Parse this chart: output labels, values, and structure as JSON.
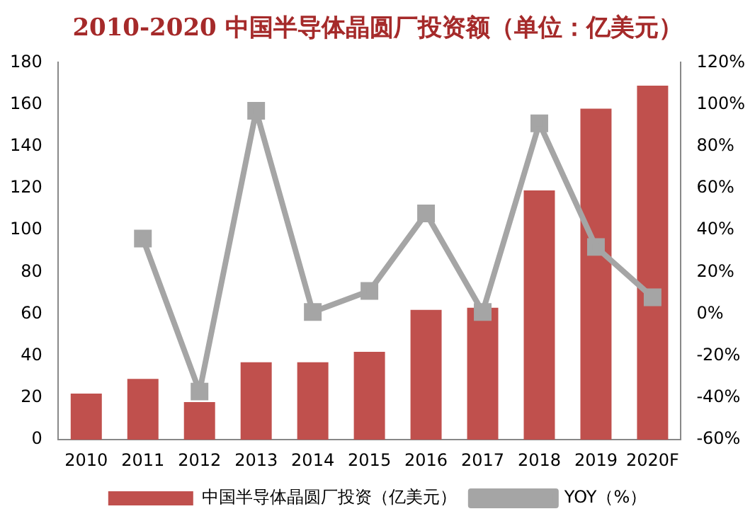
{
  "chart_data": {
    "type": "bar",
    "title": "2010-2020 中国半导体晶圆厂投资额（单位：亿美元）",
    "categories": [
      "2010",
      "2011",
      "2012",
      "2013",
      "2014",
      "2015",
      "2016",
      "2017",
      "2018",
      "2019",
      "2020F"
    ],
    "series": [
      {
        "name": "中国半导体晶圆厂投资（亿美元）",
        "color": "#c0504d",
        "values": [
          22,
          29,
          18,
          37,
          37,
          42,
          62,
          63,
          119,
          158,
          169
        ]
      },
      {
        "name": "YOY（%）",
        "type": "line",
        "axis": "y2",
        "color": "#a5a5a5",
        "marker": "square",
        "values": [
          null,
          36,
          -37,
          97,
          1,
          11,
          48,
          1,
          91,
          32,
          8
        ]
      }
    ],
    "ylim": [
      0,
      180
    ],
    "yticks": [
      0,
      20,
      40,
      60,
      80,
      100,
      120,
      140,
      160,
      180
    ],
    "y2lim": [
      -60,
      120
    ],
    "y2ticks": [
      {
        "value": -60,
        "label": "-60%"
      },
      {
        "value": -40,
        "label": "-40%"
      },
      {
        "value": -20,
        "label": "-20%"
      },
      {
        "value": 0,
        "label": "0%"
      },
      {
        "value": 20,
        "label": "20%"
      },
      {
        "value": 40,
        "label": "40%"
      },
      {
        "value": 60,
        "label": "60%"
      },
      {
        "value": 80,
        "label": "80%"
      },
      {
        "value": 100,
        "label": "100%"
      },
      {
        "value": 120,
        "label": "120%"
      }
    ],
    "grid": false,
    "legend": "bottom"
  }
}
